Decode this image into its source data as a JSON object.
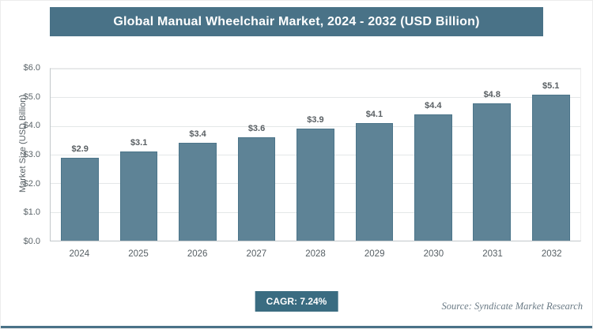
{
  "header": {
    "title": "Global Manual Wheelchair Market, 2024 - 2032 (USD Billion)"
  },
  "chart_data": {
    "type": "bar",
    "title": "Global Manual Wheelchair Market, 2024 - 2032 (USD Billion)",
    "categories": [
      "2024",
      "2025",
      "2026",
      "2027",
      "2028",
      "2029",
      "2030",
      "2031",
      "2032"
    ],
    "values": [
      2.9,
      3.1,
      3.4,
      3.6,
      3.9,
      4.1,
      4.4,
      4.8,
      5.1
    ],
    "value_labels": [
      "$2.9",
      "$3.1",
      "$3.4",
      "$3.6",
      "$3.9",
      "$4.1",
      "$4.4",
      "$4.8",
      "$5.1"
    ],
    "xlabel": "",
    "ylabel": "Market Size (USD Billion)",
    "ylim": [
      0,
      6
    ],
    "yticks": [
      0,
      1,
      2,
      3,
      4,
      5,
      6
    ],
    "ytick_labels": [
      "$0.0",
      "$1.0",
      "$2.0",
      "$3.0",
      "$4.0",
      "$5.0",
      "$6.0"
    ],
    "grid": true,
    "legend": "none",
    "bar_color": "#5e8396",
    "bar_border_color": "#4c758a"
  },
  "footer": {
    "cagr_label": "CAGR: 7.24%",
    "source": "Source: Syndicate Market Research"
  },
  "colors": {
    "header_bg": "#497287",
    "header_text": "#ffffff",
    "badge_bg": "#3a6c81",
    "bottom_rule": "#497287"
  }
}
